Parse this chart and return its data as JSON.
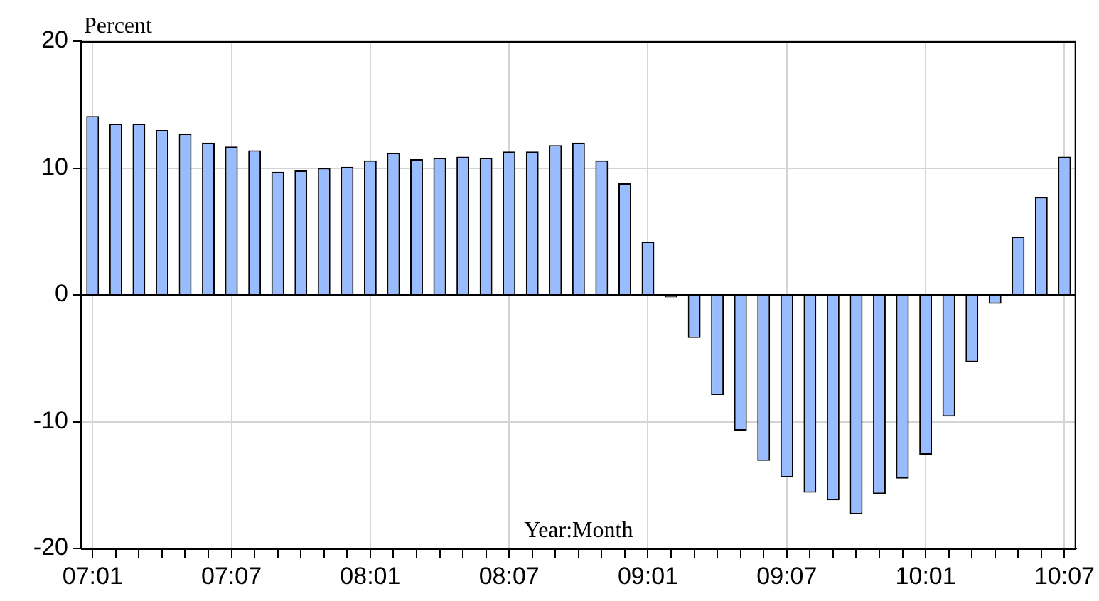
{
  "chart_data": {
    "type": "bar",
    "ylabel": "Percent",
    "xlabel": "Year:Month",
    "categories": [
      "07:01",
      null,
      null,
      null,
      null,
      null,
      "07:07",
      null,
      null,
      null,
      null,
      null,
      "08:01",
      null,
      null,
      null,
      null,
      null,
      "08:07",
      null,
      null,
      null,
      null,
      null,
      "09:01",
      null,
      null,
      null,
      null,
      null,
      "09:07",
      null,
      null,
      null,
      null,
      null,
      "10:01",
      null,
      null,
      null,
      null,
      null,
      "10:07"
    ],
    "values": [
      14.1,
      13.5,
      13.5,
      13.0,
      12.7,
      12.0,
      11.7,
      11.4,
      9.7,
      9.8,
      10.0,
      10.1,
      10.6,
      11.2,
      10.7,
      10.8,
      10.9,
      10.8,
      11.3,
      11.3,
      11.8,
      12.0,
      10.6,
      8.8,
      4.2,
      -0.2,
      -3.4,
      -7.9,
      -10.7,
      -13.1,
      -14.4,
      -15.6,
      -16.2,
      -17.3,
      -15.7,
      -14.5,
      -12.6,
      -9.6,
      -5.3,
      -0.7,
      4.6,
      7.7,
      10.9
    ],
    "color": "#99bbff",
    "ylim": [
      -20,
      20
    ],
    "yticks": [
      -20,
      -10,
      0,
      10,
      20
    ],
    "grid": true,
    "legend": false
  }
}
